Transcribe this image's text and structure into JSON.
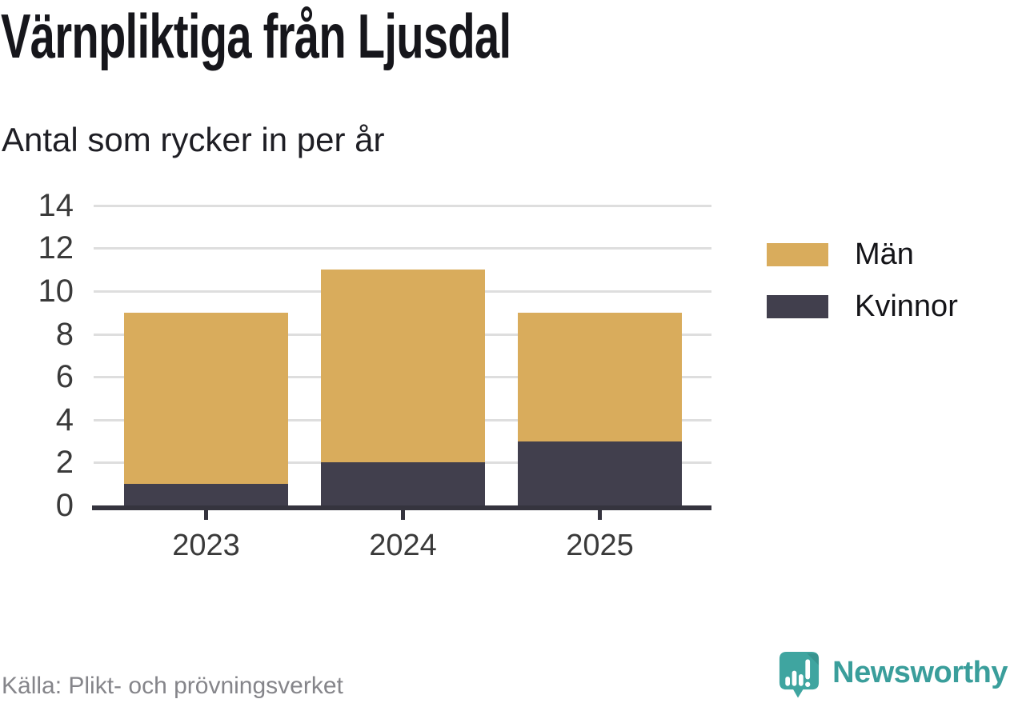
{
  "header": {
    "title": "Värnpliktiga från Ljusdal",
    "subtitle": "Antal som rycker in per år"
  },
  "chart_data": {
    "type": "bar",
    "stacked": true,
    "title": "Värnpliktiga från Ljusdal",
    "subtitle": "Antal som rycker in per år",
    "categories": [
      "2023",
      "2024",
      "2025"
    ],
    "series": [
      {
        "name": "Män",
        "values": [
          8,
          9,
          6
        ],
        "color": "#D9AC5C"
      },
      {
        "name": "Kvinnor",
        "values": [
          1,
          2,
          3
        ],
        "color": "#413F4D"
      }
    ],
    "totals": [
      9,
      11,
      9
    ],
    "xlabel": "",
    "ylabel": "",
    "ylim": [
      0,
      14
    ],
    "yticks": [
      0,
      2,
      4,
      6,
      8,
      10,
      12,
      14
    ],
    "grid": "horizontal",
    "legend_position": "right",
    "stack_order_bottom_to_top": [
      "Kvinnor",
      "Män"
    ]
  },
  "colors": {
    "bar_men": "#D9AC5C",
    "bar_women": "#413F4D",
    "axis": "#35343E",
    "gridline": "#DEDEDE",
    "tick_text": "#3A3A3A",
    "brand_teal": "#3A9E9B",
    "source_gray": "#85858A"
  },
  "footer": {
    "source": "Källa: Plikt- och prövningsverket",
    "brand": "Newsworthy"
  },
  "icons": {
    "logo": "newsworthy-speech-bubble-bar-chart-icon"
  }
}
